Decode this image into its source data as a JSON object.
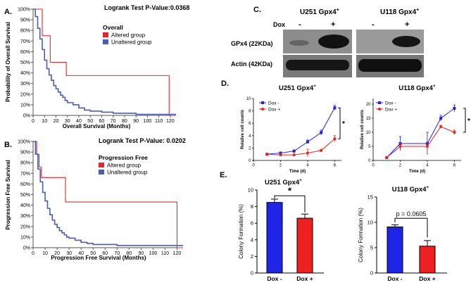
{
  "panels": {
    "A": {
      "letter": "A.",
      "test_text": "Logrank Test P-Value:0.0368",
      "legend_title": "Overall",
      "ylabel": "Probability of Overall Survival",
      "xlabel": "Overall Survival (Months)"
    },
    "B": {
      "letter": "B.",
      "test_text": "Logrank Test P-Value: 0.0202",
      "legend_title": "Progression Free",
      "ylabel": "Progression Free Survival",
      "xlabel": "Progression Free Survival (Months)"
    },
    "C": {
      "letter": "C.",
      "blot1_title": "U251 Gpx4",
      "blot2_title": "U118 Gpx4",
      "superscript": "+",
      "dox_label": "Dox",
      "lanes": [
        "-",
        "+"
      ],
      "bands": [
        "GPx4 (22KDa)",
        "Actin (42KDa)"
      ]
    },
    "D": {
      "letter": "D.",
      "sig": "*"
    },
    "E": {
      "letter": "E.",
      "p_text": "p = 0.0605",
      "sig": "*"
    }
  },
  "colors": {
    "altered": "#e8262a",
    "unaltered": "#4a5fb4",
    "dox_minus": "#1f24e6",
    "dox_plus": "#ee2020"
  },
  "chart_data": [
    {
      "id": "A",
      "type": "line",
      "x_ticks": [
        0,
        10,
        20,
        30,
        40,
        50,
        60,
        70,
        80,
        90,
        100,
        110,
        120
      ],
      "y_ticks": [
        "0%",
        "10%",
        "20%",
        "30%",
        "40%",
        "50%",
        "60%",
        "70%",
        "80%",
        "90%",
        "100%"
      ],
      "xlim": [
        0,
        125
      ],
      "ylim": [
        0,
        100
      ],
      "series": [
        {
          "name": "Altered group",
          "x": [
            0,
            4,
            8,
            10,
            15,
            16,
            18,
            20,
            29,
            118,
            119,
            125
          ],
          "y": [
            100,
            100,
            75,
            75,
            50,
            50,
            50,
            50,
            37.5,
            37.5,
            0,
            0
          ]
        },
        {
          "name": "Unaltered group",
          "x": [
            0,
            2,
            4,
            6,
            8,
            10,
            12,
            14,
            16,
            18,
            20,
            22,
            24,
            26,
            28,
            30,
            35,
            40,
            45,
            50,
            60,
            70,
            80,
            90,
            100,
            110,
            120,
            125
          ],
          "y": [
            100,
            93,
            82,
            72,
            62,
            52,
            44,
            38,
            33,
            28,
            25,
            22,
            19,
            17,
            14,
            12,
            10,
            7,
            5,
            4,
            3,
            2,
            2,
            1,
            1,
            1,
            1,
            1
          ]
        }
      ]
    },
    {
      "id": "B",
      "type": "line",
      "x_ticks": [
        0,
        10,
        20,
        30,
        40,
        50,
        60,
        70,
        80,
        90,
        100,
        110,
        120
      ],
      "y_ticks": [
        "0%",
        "10%",
        "20%",
        "30%",
        "40%",
        "50%",
        "60%",
        "70%",
        "80%",
        "90%",
        "100%"
      ],
      "xlim": [
        0,
        125
      ],
      "ylim": [
        0,
        100
      ],
      "series": [
        {
          "name": "Altered group",
          "x": [
            0,
            3,
            5,
            7,
            27,
            119,
            120,
            125
          ],
          "y": [
            100,
            88,
            76,
            66,
            43,
            43,
            0,
            0
          ]
        },
        {
          "name": "Unaltered group",
          "x": [
            0,
            2,
            4,
            6,
            8,
            10,
            12,
            14,
            16,
            18,
            20,
            22,
            24,
            26,
            28,
            30,
            35,
            40,
            45,
            50,
            60,
            70,
            80,
            90,
            100,
            110,
            120,
            125
          ],
          "y": [
            100,
            88,
            74,
            62,
            52,
            44,
            37,
            31,
            26,
            22,
            19,
            16,
            14,
            12,
            10,
            9,
            7,
            5,
            4,
            3,
            3,
            2,
            2,
            2,
            2,
            2,
            2,
            2
          ]
        }
      ]
    },
    {
      "id": "D1",
      "type": "line",
      "title": "U251 Gpx4",
      "title_sup": "+",
      "xlabel": "Time (d)",
      "ylabel": "Relative cell counts",
      "x_ticks": [
        0,
        2,
        4,
        6
      ],
      "y_ticks": [
        0,
        2,
        4,
        6,
        8,
        10
      ],
      "xlim": [
        0,
        6.5
      ],
      "ylim": [
        0,
        10
      ],
      "series": [
        {
          "name": "Dox -",
          "x": [
            1,
            2,
            3,
            4,
            5,
            6
          ],
          "y": [
            1,
            1.2,
            1.5,
            3,
            4.5,
            8.5
          ],
          "err": [
            0.1,
            0.1,
            0.2,
            0.3,
            0.4,
            0.4
          ]
        },
        {
          "name": "Dox +",
          "x": [
            1,
            2,
            3,
            4,
            5,
            6
          ],
          "y": [
            1,
            0.9,
            0.9,
            1.2,
            1.6,
            3.5
          ],
          "err": [
            0.1,
            0.1,
            0.1,
            0.6,
            0.2,
            0.5
          ]
        }
      ]
    },
    {
      "id": "D2",
      "type": "line",
      "title": "U118 Gpx4",
      "title_sup": "+",
      "xlabel": "Time (d)",
      "ylabel": "Relative cell counts",
      "x_ticks": [
        0,
        2,
        4,
        6
      ],
      "y_ticks": [
        0,
        5,
        10,
        15,
        20
      ],
      "xlim": [
        0,
        6.5
      ],
      "ylim": [
        0,
        22
      ],
      "series": [
        {
          "name": "Dox -",
          "x": [
            1,
            2,
            4,
            5,
            6
          ],
          "y": [
            1,
            6,
            6,
            15,
            18.5
          ],
          "err": [
            0.3,
            2.5,
            4,
            1,
            1.2
          ]
        },
        {
          "name": "Dox +",
          "x": [
            1,
            2,
            4,
            5,
            6
          ],
          "y": [
            1,
            5,
            5,
            12,
            10
          ],
          "err": [
            0.3,
            1,
            1,
            0.5,
            0.8
          ]
        }
      ]
    },
    {
      "id": "E1",
      "type": "bar",
      "title": "U251 Gpx4",
      "title_sup": "+",
      "categories": [
        "Dox -",
        "Dox +"
      ],
      "values": [
        8.5,
        6.6
      ],
      "err": [
        0.4,
        0.5
      ],
      "ylabel": "Colony Formation (%)",
      "y_ticks": [
        0,
        2,
        4,
        6,
        8,
        10
      ],
      "ylim": [
        0,
        10
      ]
    },
    {
      "id": "E2",
      "type": "bar",
      "title": "U118 Gpx4",
      "title_sup": "+",
      "categories": [
        "Dox -",
        "Dox +"
      ],
      "values": [
        9.1,
        5.3
      ],
      "err": [
        0.4,
        1.1
      ],
      "ylabel": "Colony Formation (%)",
      "y_ticks": [
        0,
        5,
        10,
        15
      ],
      "ylim": [
        0,
        15
      ]
    }
  ]
}
